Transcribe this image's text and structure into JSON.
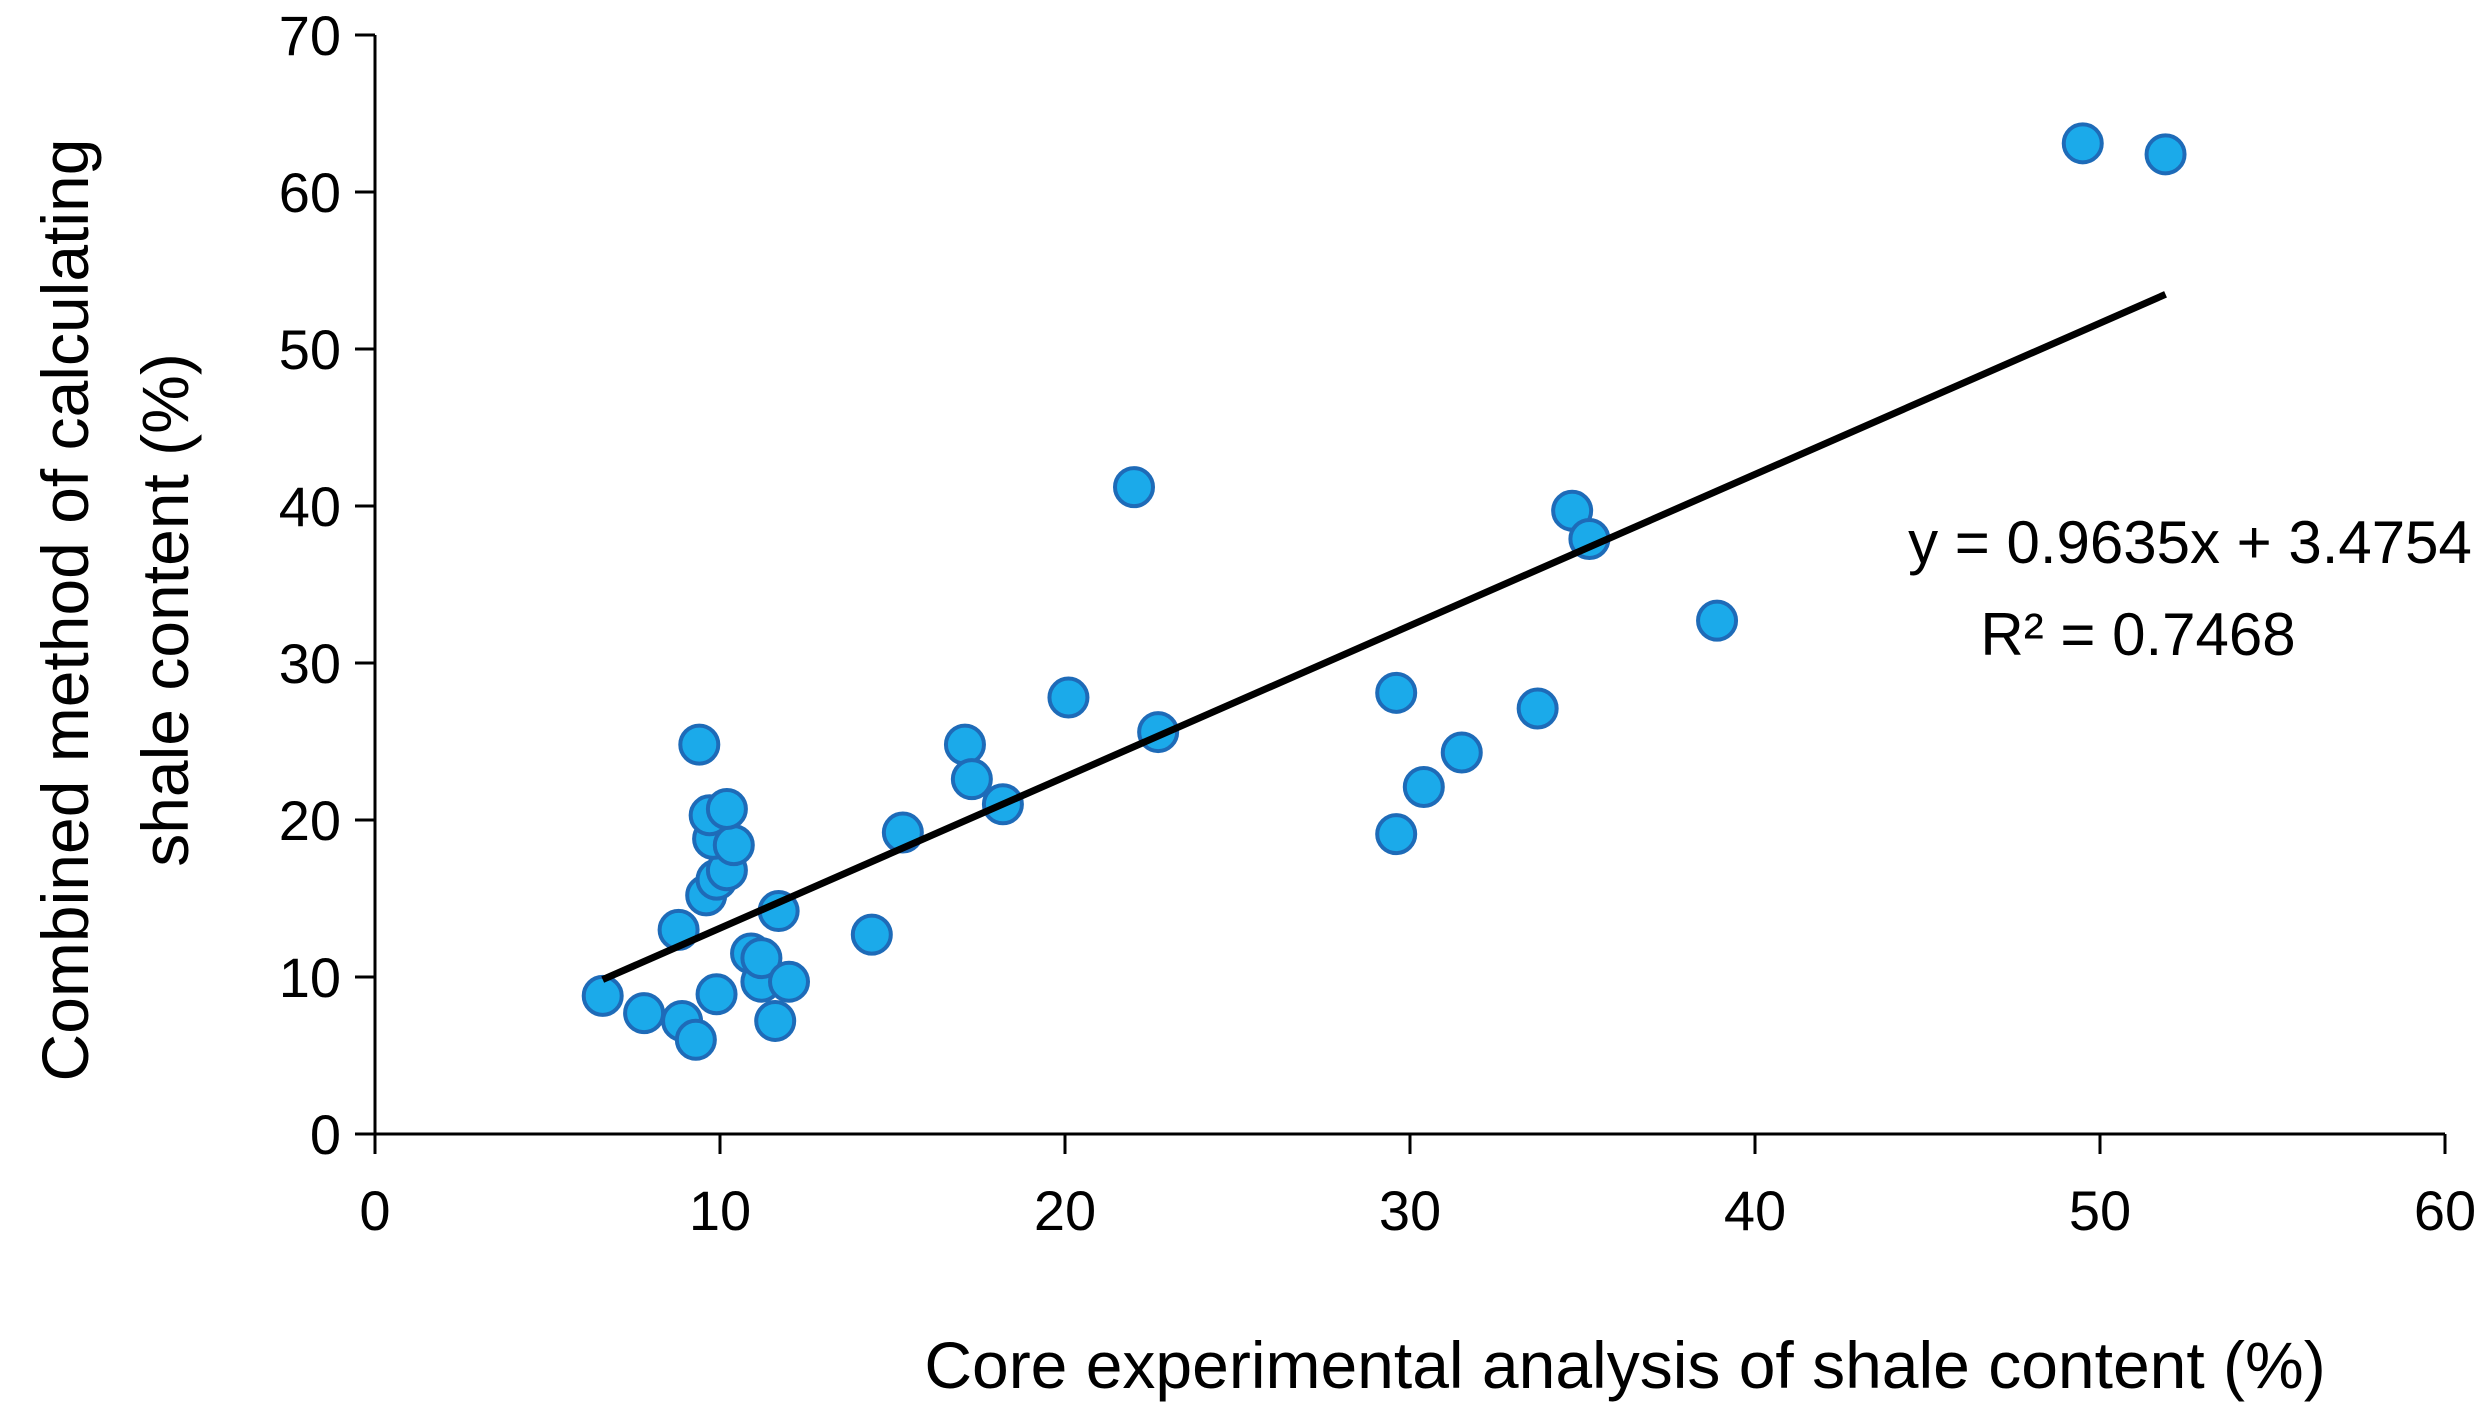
{
  "chart_data": {
    "type": "scatter",
    "title": "",
    "xlabel": "Core experimental analysis of shale content (%)",
    "ylabel_lines": [
      "Combined method of calculating",
      "shale content (%)"
    ],
    "xlim": [
      0,
      60
    ],
    "ylim": [
      0,
      70
    ],
    "xticks": [
      0,
      10,
      20,
      30,
      40,
      50,
      60
    ],
    "yticks": [
      0,
      10,
      20,
      30,
      40,
      50,
      60,
      70
    ],
    "grid": false,
    "legend": "none",
    "series": [
      {
        "name": "Samples",
        "points": [
          [
            6.6,
            8.8
          ],
          [
            7.8,
            7.7
          ],
          [
            8.9,
            7.2
          ],
          [
            9.3,
            6.0
          ],
          [
            8.8,
            13.0
          ],
          [
            9.6,
            15.2
          ],
          [
            9.9,
            16.2
          ],
          [
            10.2,
            16.8
          ],
          [
            9.8,
            18.8
          ],
          [
            10.4,
            18.4
          ],
          [
            9.7,
            20.3
          ],
          [
            10.2,
            20.7
          ],
          [
            9.4,
            24.8
          ],
          [
            9.9,
            8.9
          ],
          [
            10.9,
            11.5
          ],
          [
            11.2,
            9.7
          ],
          [
            11.2,
            11.2
          ],
          [
            12.0,
            9.7
          ],
          [
            11.6,
            7.2
          ],
          [
            11.7,
            14.2
          ],
          [
            14.4,
            12.7
          ],
          [
            15.3,
            19.2
          ],
          [
            17.1,
            24.8
          ],
          [
            17.3,
            22.6
          ],
          [
            18.2,
            21.0
          ],
          [
            20.1,
            27.8
          ],
          [
            22.0,
            41.2
          ],
          [
            22.7,
            25.6
          ],
          [
            29.6,
            28.1
          ],
          [
            29.6,
            19.1
          ],
          [
            30.4,
            22.1
          ],
          [
            31.5,
            24.3
          ],
          [
            33.7,
            27.1
          ],
          [
            34.7,
            39.7
          ],
          [
            35.2,
            37.9
          ],
          [
            38.9,
            32.7
          ],
          [
            49.5,
            63.1
          ],
          [
            51.9,
            62.4
          ]
        ]
      }
    ],
    "trendline": {
      "slope": 0.9635,
      "intercept": 3.4754,
      "x_range": [
        6.6,
        51.9
      ],
      "equation_label": "y = 0.9635x + 3.4754",
      "r2_label": "R² = 0.7468"
    },
    "colors": {
      "point_fill": "#1BAAEA",
      "point_stroke": "#1E6BB8",
      "line": "#000000"
    }
  }
}
